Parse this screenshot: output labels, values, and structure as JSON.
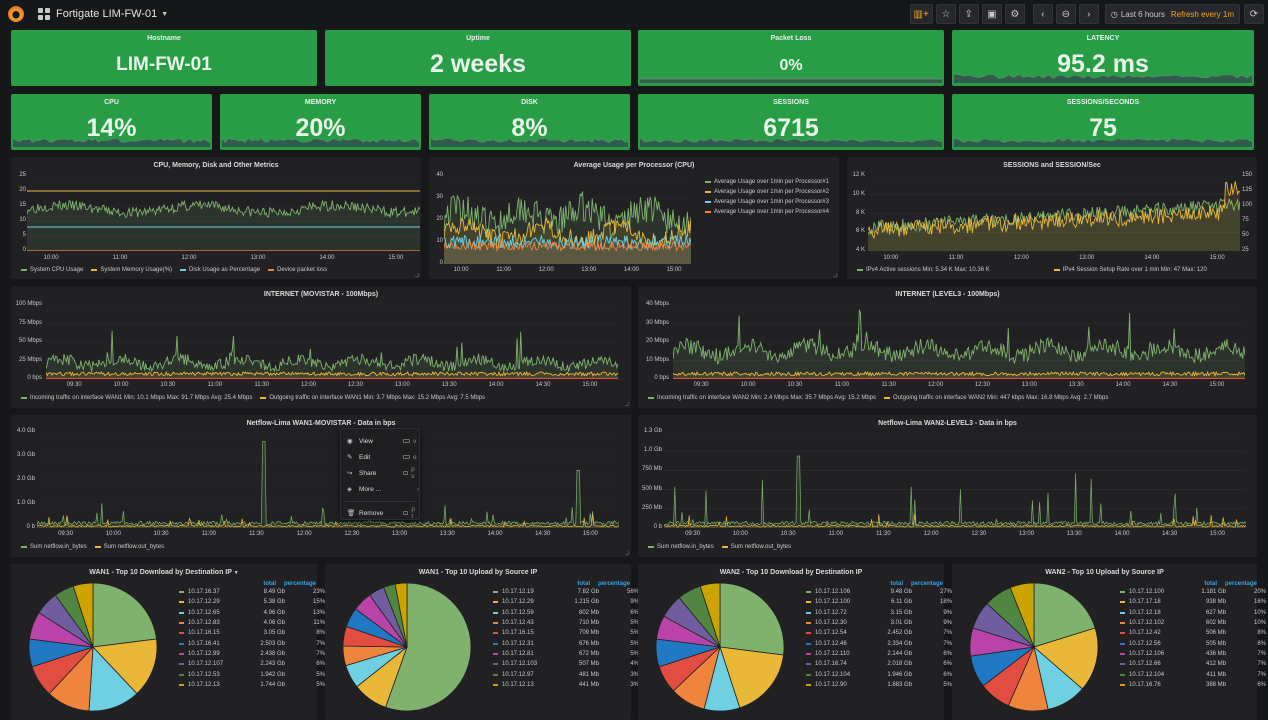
{
  "header": {
    "title": "Fortigate LIM-FW-01",
    "time_label": "Last 6 hours",
    "refresh_label": "Refresh every 1m"
  },
  "colors": {
    "ok_green": "#299c46",
    "panel_bg": "#212124",
    "page_bg": "#161719",
    "accent_orange": "#f5a623",
    "table_header_blue": "#33a2e5"
  },
  "stats_top": [
    {
      "title": "Hostname",
      "value": "LIM-FW-01",
      "spark": false
    },
    {
      "title": "Uptime",
      "value": "2 weeks",
      "spark": false
    },
    {
      "title": "Packet Loss",
      "value": "0%",
      "spark": true
    },
    {
      "title": "LATENCY",
      "value": "95.2 ms",
      "spark": true
    }
  ],
  "stats_bottom": [
    {
      "title": "CPU",
      "value": "14%"
    },
    {
      "title": "MEMORY",
      "value": "20%"
    },
    {
      "title": "DISK",
      "value": "8%"
    },
    {
      "title": "SESSIONS",
      "value": "6715"
    },
    {
      "title": "SESSIONS/SECONDS",
      "value": "75"
    }
  ],
  "context_menu": {
    "items": [
      {
        "icon": "eye-icon",
        "glyph": "◉",
        "label": "View",
        "key": "v"
      },
      {
        "icon": "edit-icon",
        "glyph": "✎",
        "label": "Edit",
        "key": "e"
      },
      {
        "icon": "share-icon",
        "glyph": "↪",
        "label": "Share",
        "key": "p s"
      },
      {
        "icon": "cube-icon",
        "glyph": "◈",
        "label": "More ...",
        "key": "›"
      },
      {
        "icon": "trash-icon",
        "glyph": "🗑",
        "label": "Remove",
        "key": "p r"
      }
    ]
  },
  "panels": {
    "metrics": {
      "title": "CPU, Memory, Disk and Other Metrics",
      "yticks": [
        "25",
        "20",
        "15",
        "10",
        "5",
        "0"
      ],
      "xticks": [
        "10:00",
        "11:00",
        "12:00",
        "13:00",
        "14:00",
        "15:00"
      ],
      "legend": [
        {
          "label": "System CPU Usage",
          "color": "#7eb26d"
        },
        {
          "label": "System Memory Usage(%)",
          "color": "#eab839"
        },
        {
          "label": "Disk Usage as Percentage",
          "color": "#6ed0e0"
        },
        {
          "label": "Device packet loss",
          "color": "#ef843c"
        }
      ]
    },
    "cpu": {
      "title": "Average Usage per Processor (CPU)",
      "yticks": [
        "40",
        "30",
        "20",
        "10",
        "0"
      ],
      "xticks": [
        "10:00",
        "11:00",
        "12:00",
        "13:00",
        "14:00",
        "15:00"
      ],
      "legend": [
        {
          "label": "Average Usage over 1min per Processor#1",
          "color": "#7eb26d"
        },
        {
          "label": "Average Usage over 1min per Processor#2",
          "color": "#eab839"
        },
        {
          "label": "Average Usage over 1min per Processor#3",
          "color": "#6ed0e0"
        },
        {
          "label": "Average Usage over 1min per Processor#4",
          "color": "#ef843c"
        }
      ]
    },
    "sessions": {
      "title": "SESSIONS and SESSION/Sec",
      "yticks_left": [
        "12 K",
        "10 K",
        "8 K",
        "6 K",
        "4 K"
      ],
      "yticks_right": [
        "150",
        "125",
        "100",
        "75",
        "50",
        "25"
      ],
      "xticks": [
        "10:00",
        "11:00",
        "12:00",
        "13:00",
        "14:00",
        "15:00"
      ],
      "legend": [
        {
          "label": "IPv4 Active sessions  Min: 5.34 K  Max: 10.36 K",
          "color": "#7eb26d"
        },
        {
          "label": "IPv4 Session Setup Rate over 1 min  Min: 47  Max: 120",
          "color": "#eab839"
        }
      ]
    },
    "movistar": {
      "title": "INTERNET (MOVISTAR - 100Mbps)",
      "yticks": [
        "100 Mbps",
        "75 Mbps",
        "50 Mbps",
        "25 Mbps",
        "0 bps"
      ],
      "xticks": [
        "09:30",
        "10:00",
        "10:30",
        "11:00",
        "11:30",
        "12:00",
        "12:30",
        "13:00",
        "13:30",
        "14:00",
        "14:30",
        "15:00"
      ],
      "legend": [
        {
          "label": "Incoming traffic on interface WAN1  Min: 10.1 Mbps  Max: 91.7 Mbps  Avg: 25.4 Mbps",
          "color": "#7eb26d"
        },
        {
          "label": "Outgoing traffic on interface WAN1  Min: 3.7 Mbps  Max: 15.2 Mbps  Avg: 7.5 Mbps",
          "color": "#eab839"
        }
      ]
    },
    "level3": {
      "title": "INTERNET (LEVEL3 - 100Mbps)",
      "yticks": [
        "40 Mbps",
        "30 Mbps",
        "20 Mbps",
        "10 Mbps",
        "0 bps"
      ],
      "xticks": [
        "09:30",
        "10:00",
        "10:30",
        "11:00",
        "11:30",
        "12:00",
        "12:30",
        "13:00",
        "13:30",
        "14:00",
        "14:30",
        "15:00"
      ],
      "legend": [
        {
          "label": "Incoming traffic on interface WAN2  Min: 2.4 Mbps  Max: 35.7 Mbps  Avg: 15.2 Mbps",
          "color": "#7eb26d"
        },
        {
          "label": "Outgoing traffic on interface WAN2  Min: 447 kbps  Max: 16.8 Mbps  Avg: 2.7 Mbps",
          "color": "#eab839"
        }
      ]
    },
    "netflow1": {
      "title": "Netflow-Lima WAN1-MOVISTAR - Data in bps",
      "yticks": [
        "4.0 Gb",
        "3.0 Gb",
        "2.0 Gb",
        "1.0 Gb",
        "0 b"
      ],
      "xticks": [
        "09:30",
        "10:00",
        "10:30",
        "11:00",
        "11:30",
        "12:00",
        "12:30",
        "13:00",
        "13:30",
        "14:00",
        "14:30",
        "15:00"
      ],
      "legend": [
        {
          "label": "Sum netflow.in_bytes",
          "color": "#7eb26d"
        },
        {
          "label": "Sum netflow.out_bytes",
          "color": "#eab839"
        }
      ]
    },
    "netflow2": {
      "title": "Netflow-Lima WAN2-LEVEL3 - Data in bps",
      "yticks": [
        "1.3 Gb",
        "1.0 Gb",
        "750 Mb",
        "500 Mb",
        "250 Mb",
        "0 b"
      ],
      "xticks": [
        "09:30",
        "10:00",
        "10:30",
        "11:00",
        "11:30",
        "12:00",
        "12:30",
        "13:00",
        "13:30",
        "14:00",
        "14:30",
        "15:00"
      ],
      "legend": [
        {
          "label": "Sum netflow.in_bytes",
          "color": "#7eb26d"
        },
        {
          "label": "Sum netflow.out_bytes",
          "color": "#eab839"
        }
      ]
    }
  },
  "pie_colors": [
    "#7eb26d",
    "#eab839",
    "#6ed0e0",
    "#ef843c",
    "#e24d42",
    "#1f78c1",
    "#ba43a9",
    "#705da0",
    "#508642",
    "#cca300"
  ],
  "pies": [
    {
      "title": "WAN1 - Top 10 Download by Destination IP",
      "has_caret": true,
      "col_total": "total",
      "col_pct": "percentage",
      "rows": [
        [
          "10.17.16.37",
          "8.49 Gb",
          "23%"
        ],
        [
          "10.17.12.29",
          "5.38 Gb",
          "15%"
        ],
        [
          "10.17.12.65",
          "4.96 Gb",
          "13%"
        ],
        [
          "10.17.12.83",
          "4.06 Gb",
          "11%"
        ],
        [
          "10.17.16.15",
          "3.05 Gb",
          "8%"
        ],
        [
          "10.17.16.41",
          "2.503 Gb",
          "7%"
        ],
        [
          "10.17.12.99",
          "2.438 Gb",
          "7%"
        ],
        [
          "10.17.12.107",
          "2.243 Gb",
          "6%"
        ],
        [
          "10.17.12.53",
          "1.942 Gb",
          "5%"
        ],
        [
          "10.17.12.13",
          "1.744 Gb",
          "5%"
        ]
      ]
    },
    {
      "title": "WAN1 - Top 10 Upload by Source IP",
      "has_caret": false,
      "col_total": "total",
      "col_pct": "percentage",
      "rows": [
        [
          "10.17.12.19",
          "7.82 Gb",
          "56%"
        ],
        [
          "10.17.12.29",
          "1.215 Gb",
          "9%"
        ],
        [
          "10.17.12.59",
          "802 Mb",
          "6%"
        ],
        [
          "10.17.12.43",
          "710 Mb",
          "5%"
        ],
        [
          "10.17.16.15",
          "709 Mb",
          "5%"
        ],
        [
          "10.17.12.31",
          "676 Mb",
          "5%"
        ],
        [
          "10.17.12.81",
          "672 Mb",
          "5%"
        ],
        [
          "10.17.12.103",
          "507 Mb",
          "4%"
        ],
        [
          "10.17.12.97",
          "481 Mb",
          "3%"
        ],
        [
          "10.17.12.13",
          "441 Mb",
          "3%"
        ]
      ]
    },
    {
      "title": "WAN2 - Top 10 Download by Destination IP",
      "has_caret": false,
      "col_total": "total",
      "col_pct": "percentage",
      "rows": [
        [
          "10.17.12.106",
          "9.48 Gb",
          "27%"
        ],
        [
          "10.17.12.100",
          "6.11 Gb",
          "18%"
        ],
        [
          "10.17.12.72",
          "3.15 Gb",
          "9%"
        ],
        [
          "10.17.12.30",
          "3.01 Gb",
          "9%"
        ],
        [
          "10.17.12.54",
          "2.452 Gb",
          "7%"
        ],
        [
          "10.17.12.46",
          "2.334 Gb",
          "7%"
        ],
        [
          "10.17.12.110",
          "2.144 Gb",
          "6%"
        ],
        [
          "10.17.16.74",
          "2.018 Gb",
          "6%"
        ],
        [
          "10.17.12.104",
          "1.946 Gb",
          "6%"
        ],
        [
          "10.17.12.90",
          "1.883 Gb",
          "5%"
        ]
      ]
    },
    {
      "title": "WAN2 - Top 10 Upload by Source IP",
      "has_caret": false,
      "col_total": "total",
      "col_pct": "percentage",
      "rows": [
        [
          "10.17.12.100",
          "1.181 Gb",
          "20%"
        ],
        [
          "10.17.17.18",
          "938 Mb",
          "16%"
        ],
        [
          "10.17.12.18",
          "627 Mb",
          "10%"
        ],
        [
          "10.17.12.102",
          "602 Mb",
          "10%"
        ],
        [
          "10.17.12.42",
          "506 Mb",
          "8%"
        ],
        [
          "10.17.12.56",
          "505 Mb",
          "8%"
        ],
        [
          "10.17.12.106",
          "436 Mb",
          "7%"
        ],
        [
          "10.17.12.66",
          "412 Mb",
          "7%"
        ],
        [
          "10.17.12.104",
          "411 Mb",
          "7%"
        ],
        [
          "10.17.16.76",
          "388 Mb",
          "6%"
        ]
      ]
    }
  ]
}
